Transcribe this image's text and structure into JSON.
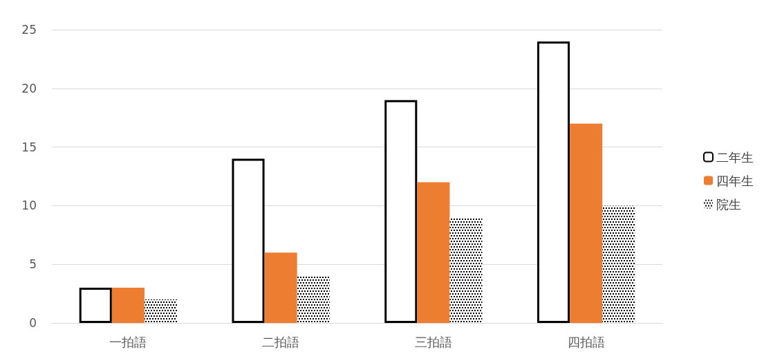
{
  "chart_data": {
    "type": "bar",
    "categories": [
      "一拍語",
      "二拍語",
      "三拍語",
      "四拍語"
    ],
    "series": [
      {
        "name": "二年生",
        "color": "#ffffff",
        "values": [
          3,
          14,
          19,
          24
        ]
      },
      {
        "name": "四年生",
        "color": "#ed7d31",
        "values": [
          3,
          6,
          12,
          17
        ]
      },
      {
        "name": "院生",
        "color": "#000000",
        "values": [
          2,
          4,
          9,
          10
        ]
      }
    ],
    "ylim": [
      0,
      25
    ],
    "yticks": [
      0,
      5,
      10,
      15,
      20,
      25
    ],
    "grid": "y",
    "legend": "right"
  }
}
